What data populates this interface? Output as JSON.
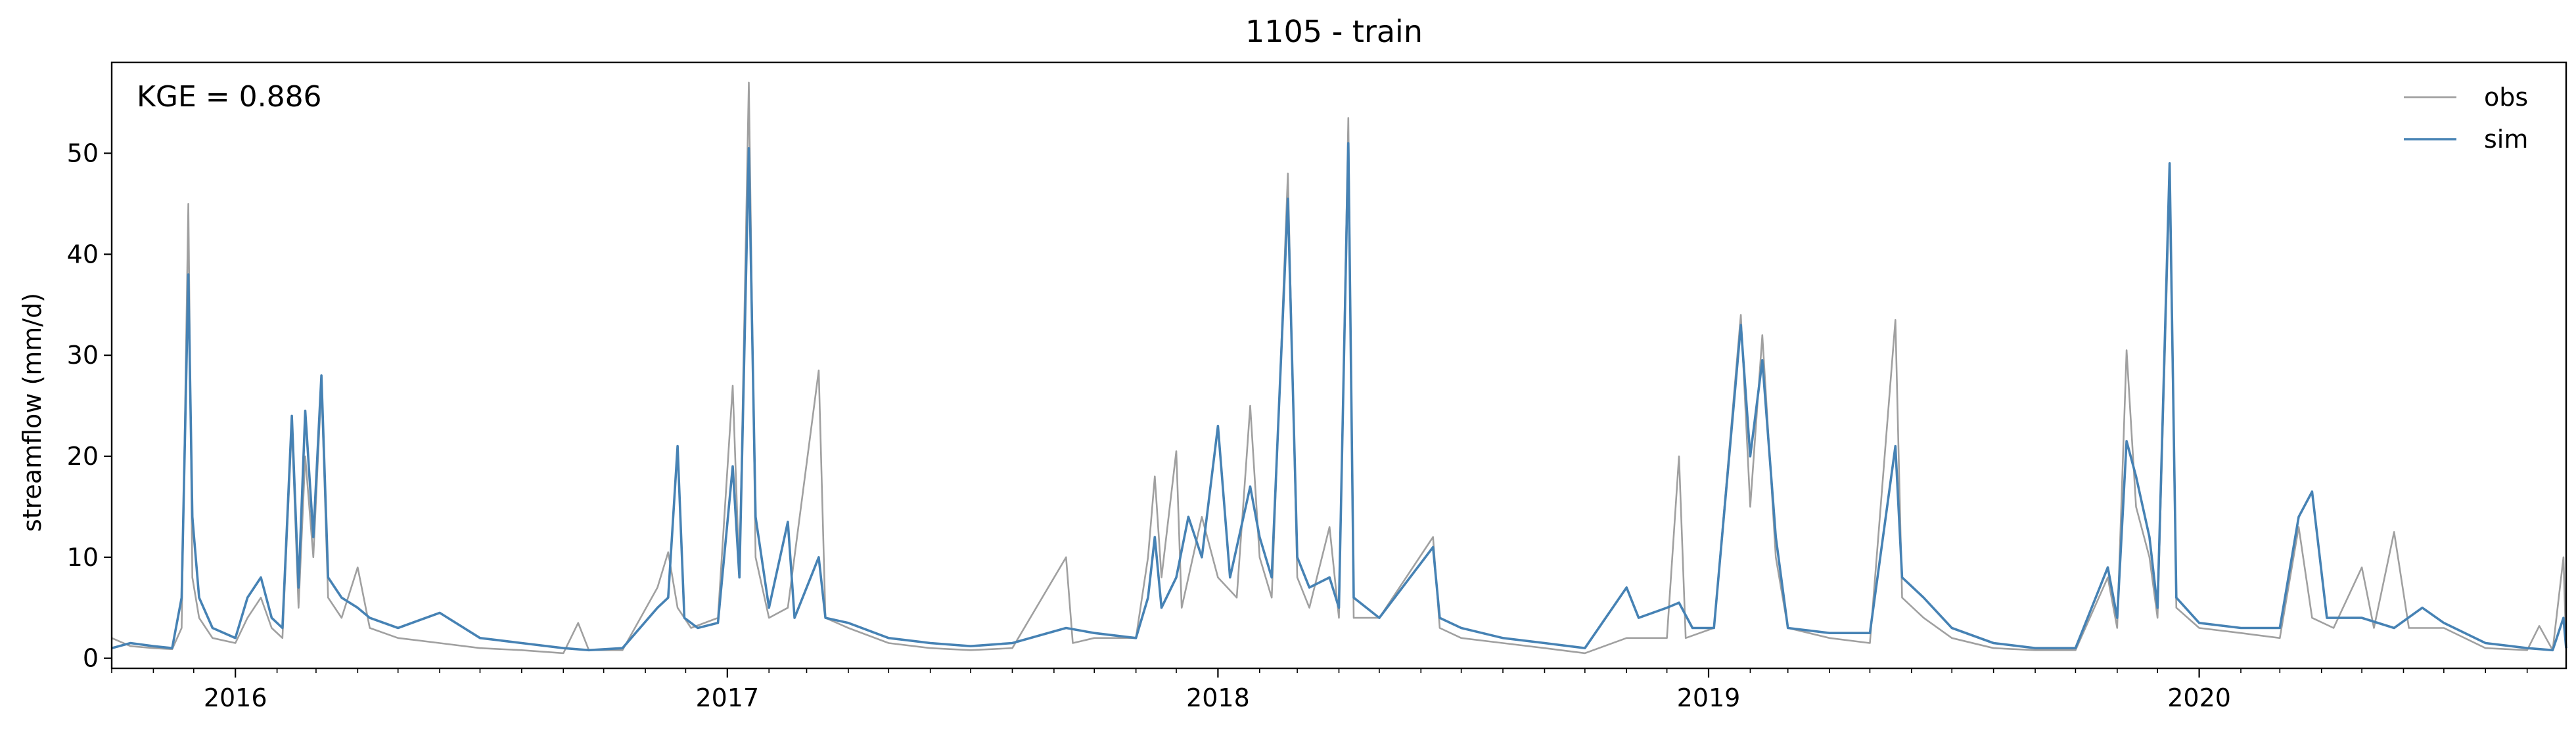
{
  "chart_data": {
    "type": "line",
    "title": "1105 - train",
    "ylabel": "streamflow (mm/d)",
    "xlabel": "",
    "xlim": [
      "2015-10-01",
      "2020-09-30"
    ],
    "ylim": [
      -1,
      59
    ],
    "yticks": [
      0,
      10,
      20,
      30,
      40,
      50
    ],
    "xticks": [
      {
        "date": "2016-01-01",
        "label": "2016"
      },
      {
        "date": "2017-01-01",
        "label": "2017"
      },
      {
        "date": "2018-01-01",
        "label": "2018"
      },
      {
        "date": "2019-01-01",
        "label": "2019"
      },
      {
        "date": "2020-01-01",
        "label": "2020"
      }
    ],
    "annotation": "KGE = 0.886",
    "legend_position": "top-right",
    "grid": false,
    "series": [
      {
        "name": "obs",
        "color": "#a0a0a0",
        "points": [
          [
            "2015-10-01",
            2.0
          ],
          [
            "2015-10-15",
            1.2
          ],
          [
            "2015-11-01",
            1.0
          ],
          [
            "2015-11-15",
            0.9
          ],
          [
            "2015-11-22",
            3.0
          ],
          [
            "2015-11-27",
            45.0
          ],
          [
            "2015-11-30",
            8.0
          ],
          [
            "2015-12-05",
            4.0
          ],
          [
            "2015-12-15",
            2.0
          ],
          [
            "2016-01-01",
            1.5
          ],
          [
            "2016-01-10",
            4.0
          ],
          [
            "2016-01-20",
            6.0
          ],
          [
            "2016-01-28",
            3.0
          ],
          [
            "2016-02-05",
            2.0
          ],
          [
            "2016-02-12",
            23.0
          ],
          [
            "2016-02-17",
            5.0
          ],
          [
            "2016-02-22",
            20.0
          ],
          [
            "2016-02-28",
            10.0
          ],
          [
            "2016-03-05",
            27.0
          ],
          [
            "2016-03-10",
            6.0
          ],
          [
            "2016-03-20",
            4.0
          ],
          [
            "2016-04-01",
            9.0
          ],
          [
            "2016-04-10",
            3.0
          ],
          [
            "2016-05-01",
            2.0
          ],
          [
            "2016-06-01",
            1.5
          ],
          [
            "2016-07-01",
            1.0
          ],
          [
            "2016-08-01",
            0.8
          ],
          [
            "2016-09-01",
            0.5
          ],
          [
            "2016-09-12",
            3.5
          ],
          [
            "2016-09-20",
            0.8
          ],
          [
            "2016-10-15",
            0.8
          ],
          [
            "2016-11-10",
            7.0
          ],
          [
            "2016-11-18",
            10.5
          ],
          [
            "2016-11-25",
            5.0
          ],
          [
            "2016-12-05",
            3.0
          ],
          [
            "2016-12-25",
            4.0
          ],
          [
            "2017-01-05",
            27.0
          ],
          [
            "2017-01-10",
            8.0
          ],
          [
            "2017-01-17",
            57.0
          ],
          [
            "2017-01-22",
            10.0
          ],
          [
            "2017-02-01",
            4.0
          ],
          [
            "2017-02-15",
            5.0
          ],
          [
            "2017-03-10",
            28.5
          ],
          [
            "2017-03-15",
            4.0
          ],
          [
            "2017-04-01",
            3.0
          ],
          [
            "2017-05-01",
            1.5
          ],
          [
            "2017-06-01",
            1.0
          ],
          [
            "2017-07-01",
            0.8
          ],
          [
            "2017-08-01",
            1.0
          ],
          [
            "2017-09-10",
            10.0
          ],
          [
            "2017-09-15",
            1.5
          ],
          [
            "2017-10-01",
            2.0
          ],
          [
            "2017-11-01",
            2.0
          ],
          [
            "2017-11-10",
            10.0
          ],
          [
            "2017-11-15",
            18.0
          ],
          [
            "2017-11-20",
            8.0
          ],
          [
            "2017-12-01",
            20.5
          ],
          [
            "2017-12-05",
            5.0
          ],
          [
            "2017-12-20",
            14.0
          ],
          [
            "2018-01-01",
            8.0
          ],
          [
            "2018-01-15",
            6.0
          ],
          [
            "2018-01-25",
            25.0
          ],
          [
            "2018-02-01",
            10.0
          ],
          [
            "2018-02-10",
            6.0
          ],
          [
            "2018-02-22",
            48.0
          ],
          [
            "2018-03-01",
            8.0
          ],
          [
            "2018-03-10",
            5.0
          ],
          [
            "2018-03-25",
            13.0
          ],
          [
            "2018-04-01",
            4.0
          ],
          [
            "2018-04-08",
            53.5
          ],
          [
            "2018-04-12",
            4.0
          ],
          [
            "2018-05-01",
            4.0
          ],
          [
            "2018-06-10",
            12.0
          ],
          [
            "2018-06-15",
            3.0
          ],
          [
            "2018-07-01",
            2.0
          ],
          [
            "2018-08-01",
            1.5
          ],
          [
            "2018-09-01",
            1.0
          ],
          [
            "2018-10-01",
            0.5
          ],
          [
            "2018-11-01",
            2.0
          ],
          [
            "2018-12-01",
            2.0
          ],
          [
            "2018-12-10",
            20.0
          ],
          [
            "2018-12-15",
            2.0
          ],
          [
            "2019-01-05",
            3.0
          ],
          [
            "2019-01-25",
            34.0
          ],
          [
            "2019-02-01",
            15.0
          ],
          [
            "2019-02-10",
            32.0
          ],
          [
            "2019-02-20",
            10.0
          ],
          [
            "2019-03-01",
            3.0
          ],
          [
            "2019-04-01",
            2.0
          ],
          [
            "2019-05-01",
            1.5
          ],
          [
            "2019-05-20",
            33.5
          ],
          [
            "2019-05-25",
            6.0
          ],
          [
            "2019-06-10",
            4.0
          ],
          [
            "2019-07-01",
            2.0
          ],
          [
            "2019-08-01",
            1.0
          ],
          [
            "2019-09-01",
            0.8
          ],
          [
            "2019-10-01",
            0.8
          ],
          [
            "2019-10-25",
            8.0
          ],
          [
            "2019-11-01",
            3.0
          ],
          [
            "2019-11-08",
            30.5
          ],
          [
            "2019-11-15",
            15.0
          ],
          [
            "2019-11-25",
            10.0
          ],
          [
            "2019-12-01",
            4.0
          ],
          [
            "2019-12-10",
            47.0
          ],
          [
            "2019-12-15",
            5.0
          ],
          [
            "2020-01-01",
            3.0
          ],
          [
            "2020-02-01",
            2.5
          ],
          [
            "2020-03-01",
            2.0
          ],
          [
            "2020-03-15",
            13.0
          ],
          [
            "2020-03-25",
            4.0
          ],
          [
            "2020-04-10",
            3.0
          ],
          [
            "2020-05-01",
            9.0
          ],
          [
            "2020-05-10",
            3.0
          ],
          [
            "2020-05-25",
            12.5
          ],
          [
            "2020-06-05",
            3.0
          ],
          [
            "2020-07-01",
            3.0
          ],
          [
            "2020-08-01",
            1.0
          ],
          [
            "2020-09-01",
            0.8
          ],
          [
            "2020-09-10",
            3.2
          ],
          [
            "2020-09-20",
            0.8
          ],
          [
            "2020-09-28",
            10.0
          ],
          [
            "2020-09-30",
            1.0
          ]
        ]
      },
      {
        "name": "sim",
        "color": "#4682b4",
        "points": [
          [
            "2015-10-01",
            1.0
          ],
          [
            "2015-10-15",
            1.5
          ],
          [
            "2015-11-01",
            1.2
          ],
          [
            "2015-11-15",
            1.0
          ],
          [
            "2015-11-22",
            6.0
          ],
          [
            "2015-11-27",
            38.0
          ],
          [
            "2015-11-30",
            14.0
          ],
          [
            "2015-12-05",
            6.0
          ],
          [
            "2015-12-15",
            3.0
          ],
          [
            "2016-01-01",
            2.0
          ],
          [
            "2016-01-10",
            6.0
          ],
          [
            "2016-01-20",
            8.0
          ],
          [
            "2016-01-28",
            4.0
          ],
          [
            "2016-02-05",
            3.0
          ],
          [
            "2016-02-12",
            24.0
          ],
          [
            "2016-02-17",
            7.0
          ],
          [
            "2016-02-22",
            24.5
          ],
          [
            "2016-02-28",
            12.0
          ],
          [
            "2016-03-05",
            28.0
          ],
          [
            "2016-03-10",
            8.0
          ],
          [
            "2016-03-20",
            6.0
          ],
          [
            "2016-04-01",
            5.0
          ],
          [
            "2016-04-10",
            4.0
          ],
          [
            "2016-05-01",
            3.0
          ],
          [
            "2016-06-01",
            4.5
          ],
          [
            "2016-07-01",
            2.0
          ],
          [
            "2016-08-01",
            1.5
          ],
          [
            "2016-09-01",
            1.0
          ],
          [
            "2016-09-20",
            0.8
          ],
          [
            "2016-10-15",
            1.0
          ],
          [
            "2016-11-10",
            5.0
          ],
          [
            "2016-11-18",
            6.0
          ],
          [
            "2016-11-25",
            21.0
          ],
          [
            "2016-11-30",
            4.0
          ],
          [
            "2016-12-10",
            3.0
          ],
          [
            "2016-12-25",
            3.5
          ],
          [
            "2017-01-05",
            19.0
          ],
          [
            "2017-01-10",
            8.0
          ],
          [
            "2017-01-17",
            50.5
          ],
          [
            "2017-01-22",
            14.0
          ],
          [
            "2017-02-01",
            5.0
          ],
          [
            "2017-02-15",
            13.5
          ],
          [
            "2017-02-20",
            4.0
          ],
          [
            "2017-03-10",
            10.0
          ],
          [
            "2017-03-15",
            4.0
          ],
          [
            "2017-04-01",
            3.5
          ],
          [
            "2017-05-01",
            2.0
          ],
          [
            "2017-06-01",
            1.5
          ],
          [
            "2017-07-01",
            1.2
          ],
          [
            "2017-08-01",
            1.5
          ],
          [
            "2017-09-10",
            3.0
          ],
          [
            "2017-10-01",
            2.5
          ],
          [
            "2017-11-01",
            2.0
          ],
          [
            "2017-11-10",
            6.0
          ],
          [
            "2017-11-15",
            12.0
          ],
          [
            "2017-11-20",
            5.0
          ],
          [
            "2017-12-01",
            8.0
          ],
          [
            "2017-12-10",
            14.0
          ],
          [
            "2017-12-20",
            10.0
          ],
          [
            "2018-01-01",
            23.0
          ],
          [
            "2018-01-10",
            8.0
          ],
          [
            "2018-01-25",
            17.0
          ],
          [
            "2018-02-01",
            12.0
          ],
          [
            "2018-02-10",
            8.0
          ],
          [
            "2018-02-22",
            45.5
          ],
          [
            "2018-03-01",
            10.0
          ],
          [
            "2018-03-10",
            7.0
          ],
          [
            "2018-03-25",
            8.0
          ],
          [
            "2018-04-01",
            5.0
          ],
          [
            "2018-04-08",
            51.0
          ],
          [
            "2018-04-12",
            6.0
          ],
          [
            "2018-05-01",
            4.0
          ],
          [
            "2018-06-10",
            11.0
          ],
          [
            "2018-06-15",
            4.0
          ],
          [
            "2018-07-01",
            3.0
          ],
          [
            "2018-08-01",
            2.0
          ],
          [
            "2018-09-01",
            1.5
          ],
          [
            "2018-10-01",
            1.0
          ],
          [
            "2018-11-01",
            7.0
          ],
          [
            "2018-11-10",
            4.0
          ],
          [
            "2018-12-01",
            5.0
          ],
          [
            "2018-12-10",
            5.5
          ],
          [
            "2018-12-20",
            3.0
          ],
          [
            "2019-01-05",
            3.0
          ],
          [
            "2019-01-25",
            33.0
          ],
          [
            "2019-02-01",
            20.0
          ],
          [
            "2019-02-10",
            29.5
          ],
          [
            "2019-02-20",
            12.0
          ],
          [
            "2019-03-01",
            3.0
          ],
          [
            "2019-04-01",
            2.5
          ],
          [
            "2019-05-01",
            2.5
          ],
          [
            "2019-05-20",
            21.0
          ],
          [
            "2019-05-25",
            8.0
          ],
          [
            "2019-06-10",
            6.0
          ],
          [
            "2019-07-01",
            3.0
          ],
          [
            "2019-08-01",
            1.5
          ],
          [
            "2019-09-01",
            1.0
          ],
          [
            "2019-10-01",
            1.0
          ],
          [
            "2019-10-25",
            9.0
          ],
          [
            "2019-11-01",
            4.0
          ],
          [
            "2019-11-08",
            21.5
          ],
          [
            "2019-11-15",
            18.0
          ],
          [
            "2019-11-25",
            12.0
          ],
          [
            "2019-12-01",
            5.0
          ],
          [
            "2019-12-10",
            49.0
          ],
          [
            "2019-12-15",
            6.0
          ],
          [
            "2020-01-01",
            3.5
          ],
          [
            "2020-02-01",
            3.0
          ],
          [
            "2020-03-01",
            3.0
          ],
          [
            "2020-03-15",
            14.0
          ],
          [
            "2020-03-25",
            16.5
          ],
          [
            "2020-04-05",
            4.0
          ],
          [
            "2020-05-01",
            4.0
          ],
          [
            "2020-05-25",
            3.0
          ],
          [
            "2020-06-15",
            5.0
          ],
          [
            "2020-07-01",
            3.5
          ],
          [
            "2020-08-01",
            1.5
          ],
          [
            "2020-09-01",
            1.0
          ],
          [
            "2020-09-20",
            0.8
          ],
          [
            "2020-09-28",
            4.0
          ],
          [
            "2020-09-30",
            1.0
          ]
        ]
      }
    ]
  }
}
